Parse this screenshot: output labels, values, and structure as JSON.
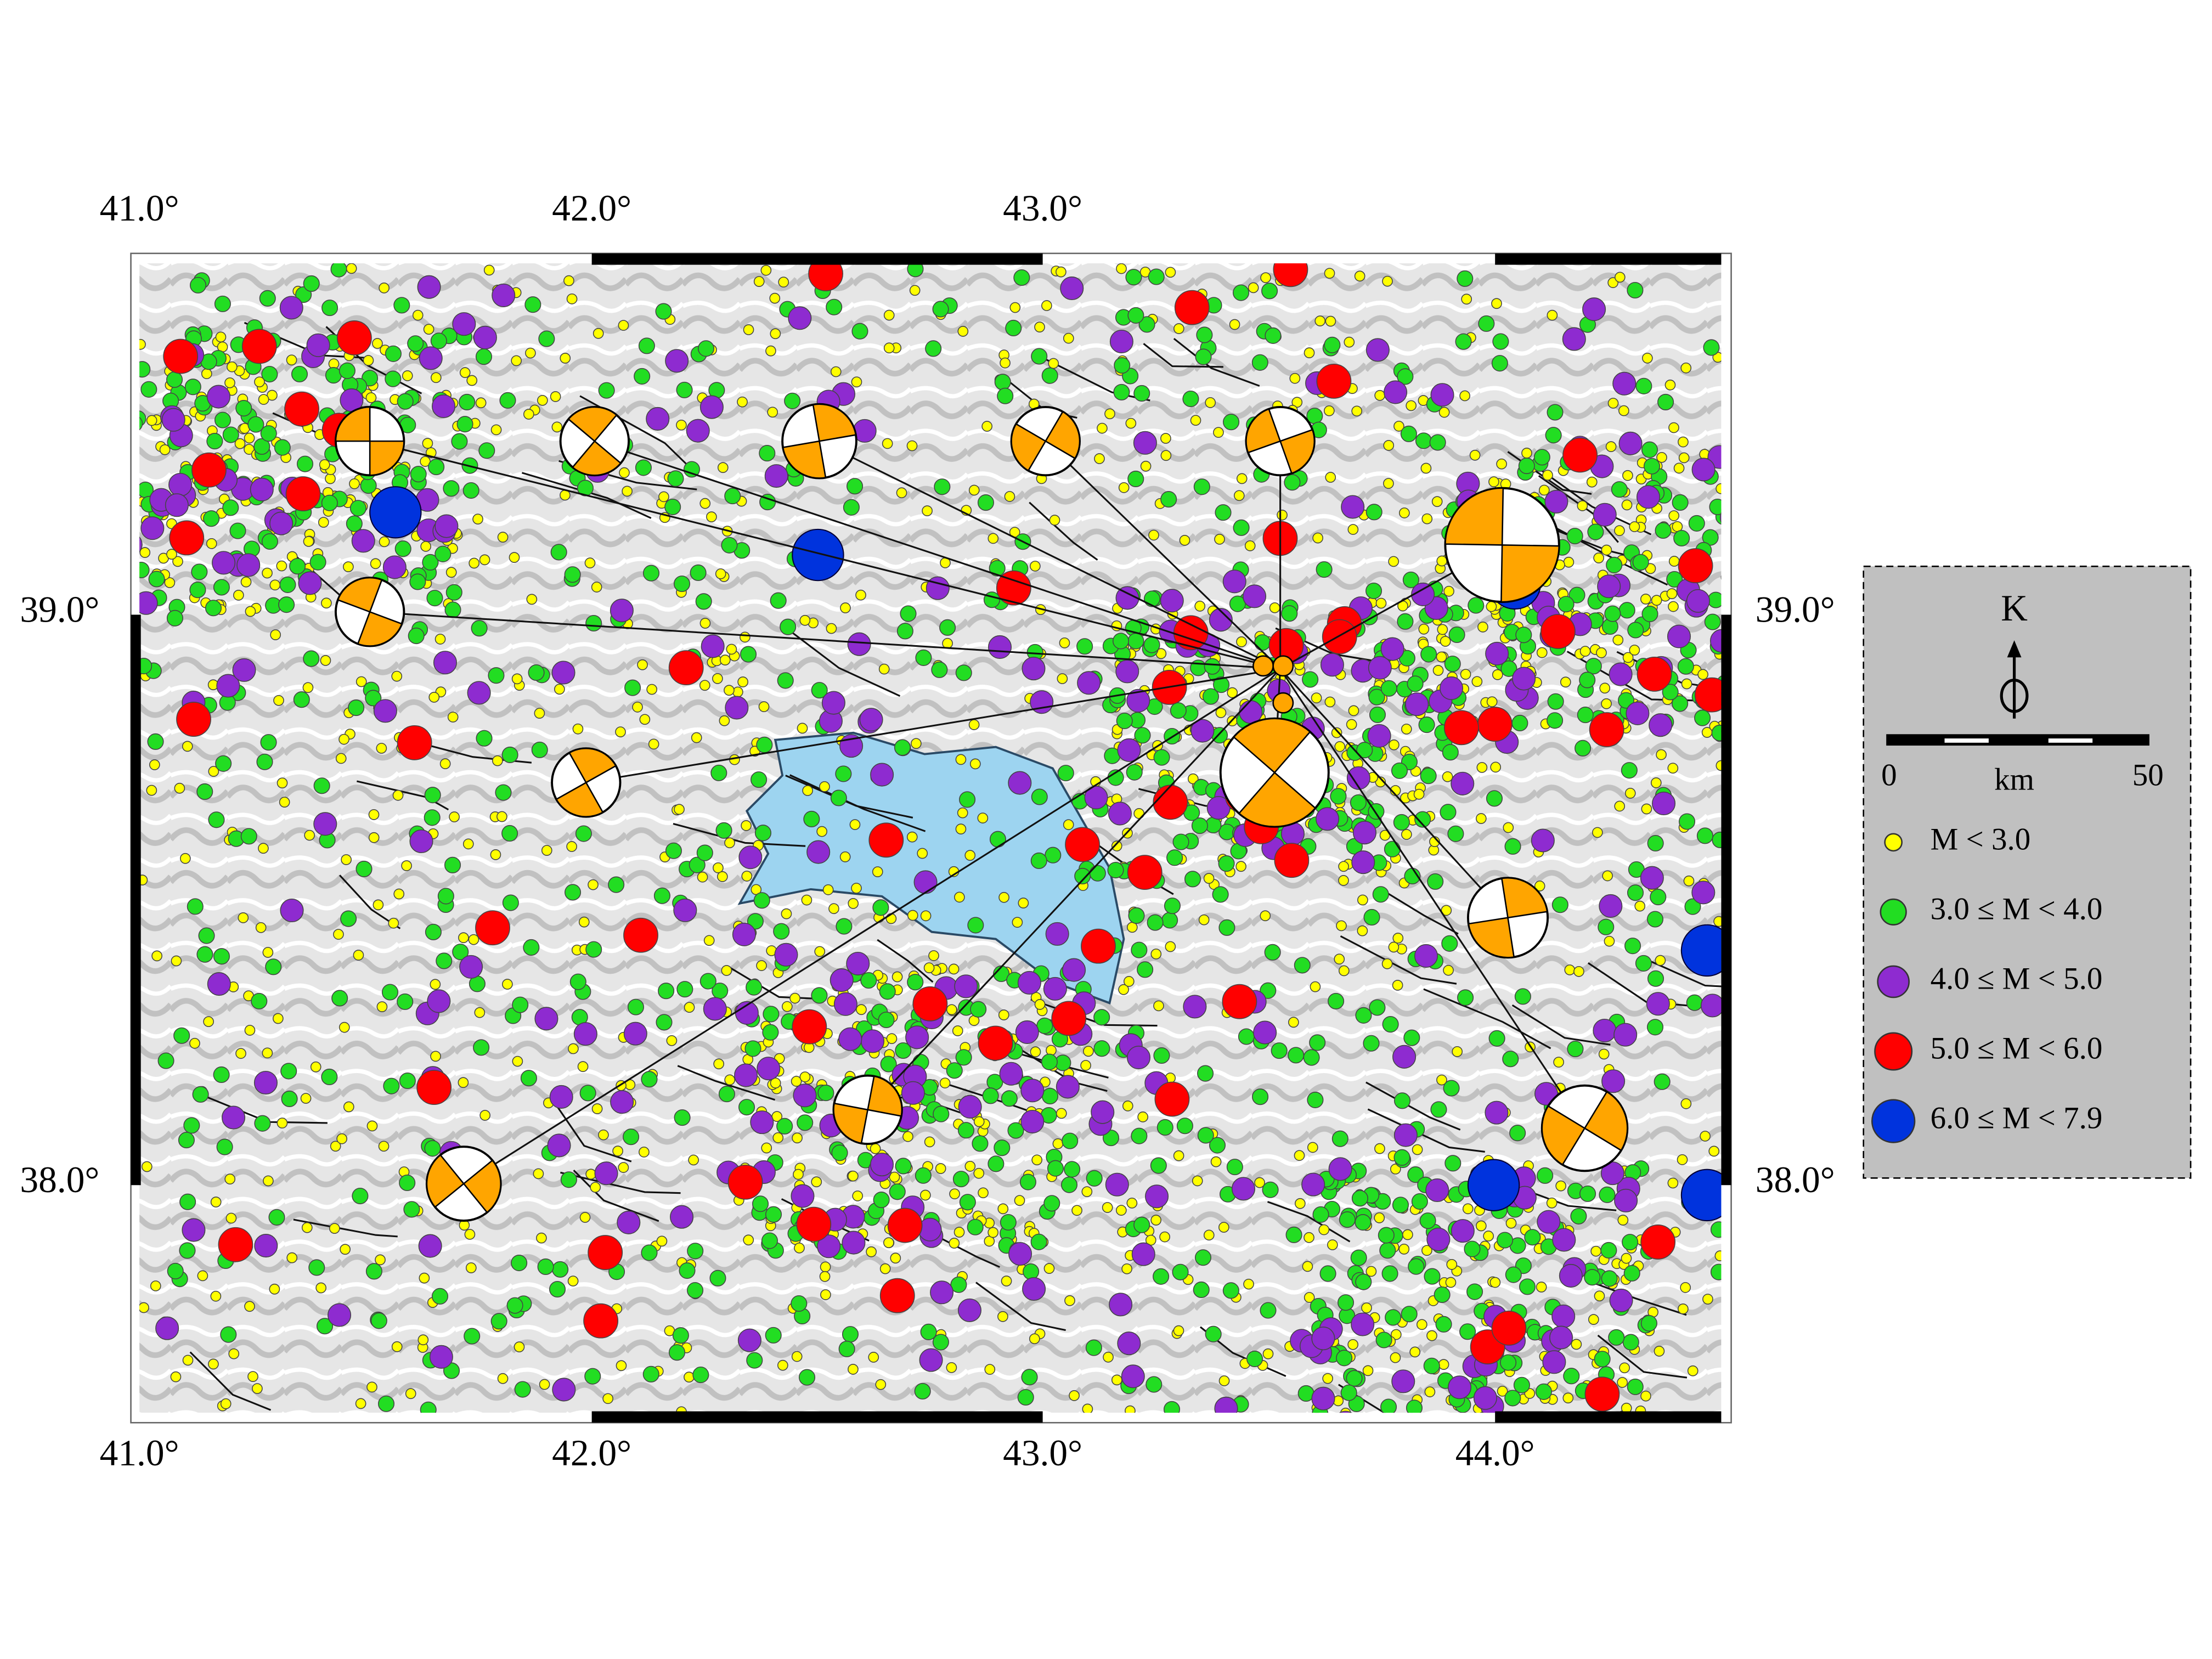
{
  "map": {
    "lon_labels_top": [
      "41.0°",
      "42.0°",
      "43.0°"
    ],
    "lon_labels_bottom": [
      "41.0°",
      "42.0°",
      "43.0°",
      "44.0°"
    ],
    "lat_labels_left": [
      "39.0°",
      "38.0°"
    ],
    "lat_labels_right": [
      "39.0°",
      "38.0°"
    ],
    "legend": {
      "north": "K",
      "scale": {
        "start": "0",
        "unit": "km",
        "end": "50"
      },
      "items": [
        {
          "label": "M < 3.0",
          "color": "#ffff00"
        },
        {
          "label": "3.0 ≤ M < 4.0",
          "color": "#22dd22"
        },
        {
          "label": "4.0 ≤ M < 5.0",
          "color": "#8e2bd0"
        },
        {
          "label": "5.0 ≤ M < 6.0",
          "color": "#ff0000"
        },
        {
          "label": "6.0 ≤ M < 7.9",
          "color": "#0033dd"
        }
      ]
    }
  }
}
